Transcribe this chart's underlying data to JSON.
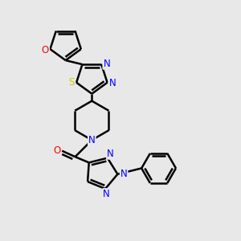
{
  "background_color": "#e8e8e8",
  "line_color": "#000000",
  "bond_width": 1.8,
  "atom_colors": {
    "N": "#0000ff",
    "O": "#ff0000",
    "S": "#cccc00",
    "C": "#000000"
  },
  "font_size": 8.5,
  "figsize": [
    3.0,
    3.0
  ],
  "dpi": 100
}
